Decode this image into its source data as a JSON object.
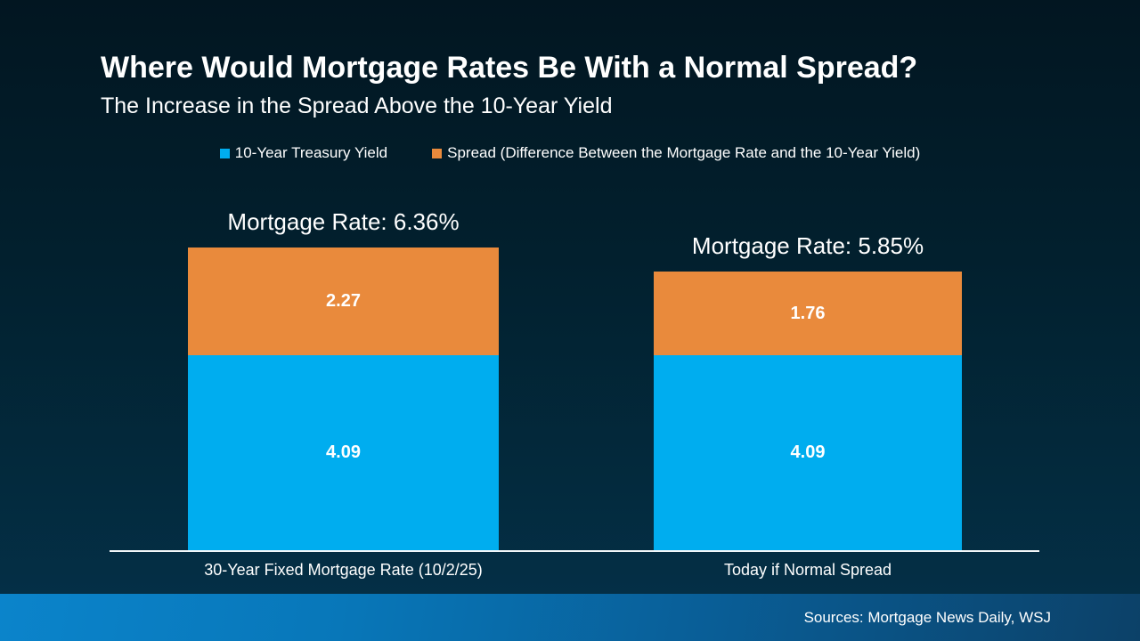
{
  "header": {
    "title": "Where Would Mortgage Rates Be With a Normal Spread?",
    "subtitle": "The Increase in the Spread Above the 10-Year Yield"
  },
  "legend": {
    "items": [
      {
        "label": "10-Year Treasury Yield",
        "color": "#00ADEF"
      },
      {
        "label": "Spread (Difference Between the Mortgage Rate and the 10-Year Yield)",
        "color": "#E98A3C"
      }
    ]
  },
  "bars": [
    {
      "total_label": "Mortgage Rate: 6.36%",
      "category": "30-Year Fixed Mortgage Rate (10/2/25)",
      "segments": [
        {
          "name": "10-Year Treasury Yield",
          "value": 4.09,
          "label": "4.09"
        },
        {
          "name": "Spread",
          "value": 2.27,
          "label": "2.27"
        }
      ]
    },
    {
      "total_label": "Mortgage Rate: 5.85%",
      "category": "Today if Normal Spread",
      "segments": [
        {
          "name": "10-Year Treasury Yield",
          "value": 4.09,
          "label": "4.09"
        },
        {
          "name": "Spread",
          "value": 1.76,
          "label": "1.76"
        }
      ]
    }
  ],
  "footer": {
    "sources": "Sources: Mortgage News Daily, WSJ"
  },
  "colors": {
    "treasury_blue": "#00ADEF",
    "spread_orange": "#E98A3C",
    "background_top": "#021621",
    "background_bottom": "#04314A",
    "footer_blue_left": "#0B84CB",
    "footer_blue_right": "#0C4168",
    "axis_line": "#F2F6F8",
    "text": "#FFFFFF"
  },
  "chart_data": {
    "type": "bar",
    "stacked": true,
    "title": "Where Would Mortgage Rates Be With a Normal Spread?",
    "subtitle": "The Increase in the Spread Above the 10-Year Yield",
    "categories": [
      "30-Year Fixed Mortgage Rate (10/2/25)",
      "Today if Normal Spread"
    ],
    "series": [
      {
        "name": "10-Year Treasury Yield",
        "color": "#00ADEF",
        "values": [
          4.09,
          4.09
        ]
      },
      {
        "name": "Spread (Difference Between the Mortgage Rate and the 10-Year Yield)",
        "color": "#E98A3C",
        "values": [
          2.27,
          1.76
        ]
      }
    ],
    "totals": [
      6.36,
      5.85
    ],
    "total_labels": [
      "Mortgage Rate: 6.36%",
      "Mortgage Rate: 5.85%"
    ],
    "ylim": [
      0,
      6.5
    ],
    "yaxis_visible": false,
    "grid": false,
    "legend_position": "top",
    "annotations": [
      "Sources: Mortgage News Daily, WSJ"
    ]
  }
}
